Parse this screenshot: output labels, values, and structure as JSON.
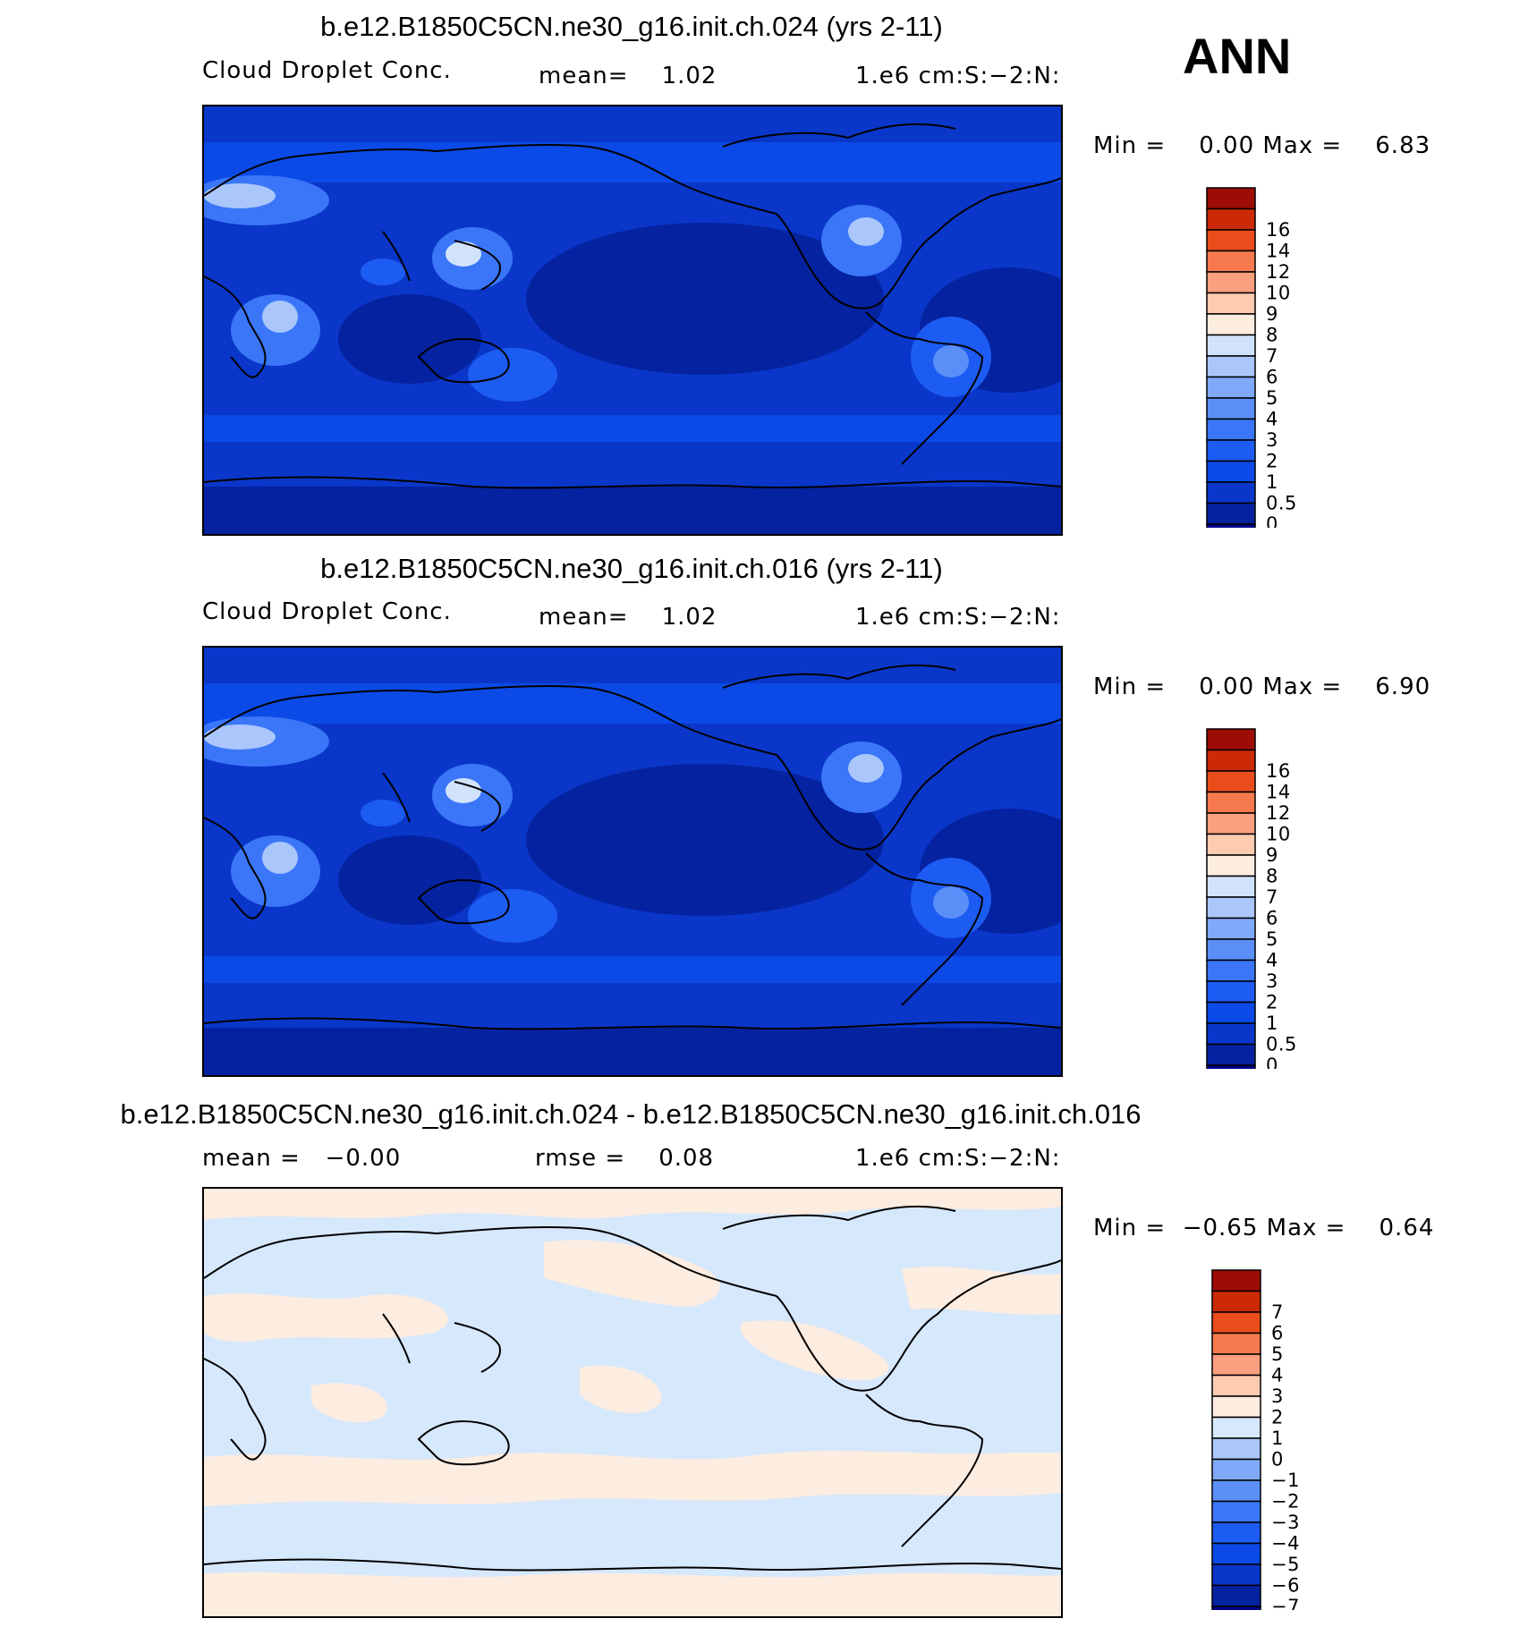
{
  "season": "ANN",
  "units": "1.e6 cm:S:−2:N:",
  "panels": [
    {
      "title": "b.e12.B1850C5CN.ne30_g16.init.ch.024 (yrs 2-11)",
      "variable": "Cloud Droplet Conc.",
      "stat1": "mean=    1.02",
      "stat2": "",
      "units": "1.e6 cm:S:−2:N:",
      "minmax": "Min =    0.00 Max =    6.83",
      "colorbar": {
        "colors": [
          "#00008a",
          "#0522a0",
          "#0a37c9",
          "#0b4ae6",
          "#1d5cf2",
          "#3a76f7",
          "#5b8ff8",
          "#80a9fa",
          "#aac6fb",
          "#d1e3fc",
          "#fdece0",
          "#fccbb0",
          "#fba07f",
          "#f77a4f",
          "#ea4d1c",
          "#cc2a06",
          "#9e0d05"
        ],
        "labels": [
          "0",
          "0.5",
          "1",
          "2",
          "3",
          "4",
          "5",
          "6",
          "7",
          "8",
          "9",
          "10",
          "12",
          "14",
          "16"
        ]
      }
    },
    {
      "title": "b.e12.B1850C5CN.ne30_g16.init.ch.016 (yrs 2-11)",
      "variable": "Cloud Droplet Conc.",
      "stat1": "mean=    1.02",
      "stat2": "",
      "units": "1.e6 cm:S:−2:N:",
      "minmax": "Min =    0.00 Max =    6.90",
      "colorbar": {
        "colors": [
          "#00008a",
          "#0522a0",
          "#0a37c9",
          "#0b4ae6",
          "#1d5cf2",
          "#3a76f7",
          "#5b8ff8",
          "#80a9fa",
          "#aac6fb",
          "#d1e3fc",
          "#fdece0",
          "#fccbb0",
          "#fba07f",
          "#f77a4f",
          "#ea4d1c",
          "#cc2a06",
          "#9e0d05"
        ],
        "labels": [
          "0",
          "0.5",
          "1",
          "2",
          "3",
          "4",
          "5",
          "6",
          "7",
          "8",
          "9",
          "10",
          "12",
          "14",
          "16"
        ]
      }
    },
    {
      "title": "b.e12.B1850C5CN.ne30_g16.init.ch.024 - b.e12.B1850C5CN.ne30_g16.init.ch.016",
      "variable": "",
      "stat1": "mean =   −0.00",
      "stat2": "rmse =    0.08",
      "units": "1.e6 cm:S:−2:N:",
      "minmax": "Min =  −0.65 Max =    0.64",
      "colorbar": {
        "colors": [
          "#00008a",
          "#0522a0",
          "#0a37c9",
          "#0b4ae6",
          "#1d5cf2",
          "#3a76f7",
          "#5b8ff8",
          "#80a9fa",
          "#aac6fb",
          "#d6e8fb",
          "#fdece0",
          "#fccbb0",
          "#fba07f",
          "#f77a4f",
          "#ea4d1c",
          "#cc2a06",
          "#9e0d05"
        ],
        "labels": [
          "−7",
          "−6",
          "−5",
          "−4",
          "−3",
          "−2",
          "−1",
          "0",
          "1",
          "2",
          "3",
          "4",
          "5",
          "6",
          "7"
        ]
      }
    }
  ]
}
